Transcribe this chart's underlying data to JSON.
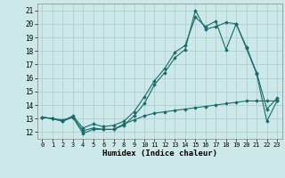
{
  "xlabel": "Humidex (Indice chaleur)",
  "xlim": [
    -0.5,
    23.5
  ],
  "ylim": [
    11.5,
    21.5
  ],
  "yticks": [
    12,
    13,
    14,
    15,
    16,
    17,
    18,
    19,
    20,
    21
  ],
  "xticks": [
    0,
    1,
    2,
    3,
    4,
    5,
    6,
    7,
    8,
    9,
    10,
    11,
    12,
    13,
    14,
    15,
    16,
    17,
    18,
    19,
    20,
    21,
    22,
    23
  ],
  "background_color": "#cce8e8",
  "grid_color": "#aacccc",
  "line_color": "#1a6b6b",
  "line1_x": [
    0,
    1,
    2,
    3,
    4,
    5,
    6,
    7,
    8,
    9,
    10,
    11,
    12,
    13,
    14,
    15,
    16,
    17,
    18,
    19,
    20,
    21,
    22,
    23
  ],
  "line1_y": [
    13.1,
    13.0,
    12.9,
    13.1,
    11.9,
    12.2,
    12.2,
    12.2,
    12.5,
    13.2,
    14.1,
    15.5,
    16.4,
    17.5,
    18.1,
    21.0,
    19.6,
    19.8,
    20.1,
    20.0,
    18.2,
    16.3,
    12.8,
    14.3
  ],
  "line2_x": [
    0,
    1,
    2,
    3,
    4,
    5,
    6,
    7,
    8,
    9,
    10,
    11,
    12,
    13,
    14,
    15,
    16,
    17,
    18,
    19,
    20,
    21,
    22,
    23
  ],
  "line2_y": [
    13.1,
    13.0,
    12.8,
    13.2,
    12.3,
    12.6,
    12.4,
    12.5,
    12.8,
    13.5,
    14.6,
    15.8,
    16.7,
    17.9,
    18.4,
    20.5,
    19.8,
    20.2,
    18.1,
    20.0,
    18.3,
    16.4,
    13.7,
    14.5
  ],
  "line3_x": [
    0,
    1,
    2,
    3,
    4,
    5,
    6,
    7,
    8,
    9,
    10,
    11,
    12,
    13,
    14,
    15,
    16,
    17,
    18,
    19,
    20,
    21,
    22,
    23
  ],
  "line3_y": [
    13.1,
    13.0,
    12.8,
    13.1,
    12.1,
    12.3,
    12.2,
    12.2,
    12.6,
    12.9,
    13.2,
    13.4,
    13.5,
    13.6,
    13.7,
    13.8,
    13.9,
    14.0,
    14.1,
    14.2,
    14.3,
    14.3,
    14.3,
    14.3
  ],
  "marker": "D",
  "marker_size": 1.8,
  "linewidth": 0.8
}
